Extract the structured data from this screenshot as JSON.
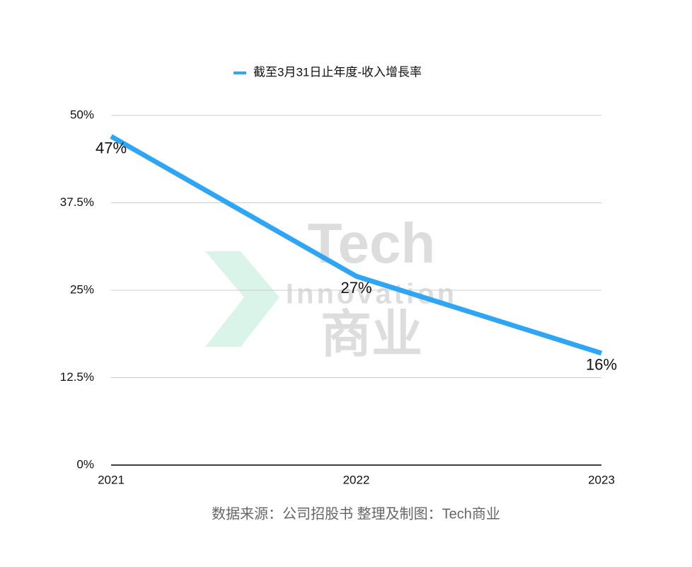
{
  "chart_data": {
    "type": "line",
    "legend_label": "截至3月31日止年度-收入增長率",
    "categories": [
      "2021",
      "2022",
      "2023"
    ],
    "series": [
      {
        "name": "截至3月31日止年度-收入增長率",
        "color": "#2ea6f5",
        "values": [
          47,
          27,
          16
        ],
        "value_labels": [
          "47%",
          "27%",
          "16%"
        ]
      }
    ],
    "ylim": [
      0,
      50
    ],
    "yticks": [
      {
        "value": 0,
        "label": "0%"
      },
      {
        "value": 12.5,
        "label": "12.5%"
      },
      {
        "value": 25,
        "label": "25%"
      },
      {
        "value": 37.5,
        "label": "37.5%"
      },
      {
        "value": 50,
        "label": "50%"
      }
    ],
    "grid": true,
    "source": "数据来源：公司招股书  整理及制图：Tech商业",
    "watermark": [
      "Tech",
      "Innovation",
      "商业"
    ]
  }
}
